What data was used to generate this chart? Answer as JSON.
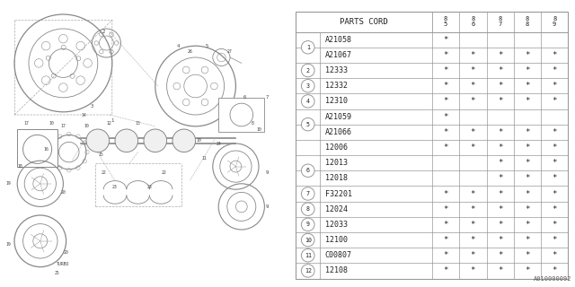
{
  "diagram_id": "A010000092",
  "bg_color": "#ffffff",
  "col_header": "PARTS CORD",
  "year_cols": [
    "85",
    "86",
    "87",
    "88",
    "89"
  ],
  "rows": [
    {
      "num": "1",
      "parts": [
        "A21058",
        "A21067"
      ],
      "marks": [
        [
          "*",
          "",
          "",
          "",
          ""
        ],
        [
          "*",
          "*",
          "*",
          "*",
          "*"
        ]
      ]
    },
    {
      "num": "2",
      "parts": [
        "12333"
      ],
      "marks": [
        [
          "*",
          "*",
          "*",
          "*",
          "*"
        ]
      ]
    },
    {
      "num": "3",
      "parts": [
        "12332"
      ],
      "marks": [
        [
          "*",
          "*",
          "*",
          "*",
          "*"
        ]
      ]
    },
    {
      "num": "4",
      "parts": [
        "12310"
      ],
      "marks": [
        [
          "*",
          "*",
          "*",
          "*",
          "*"
        ]
      ]
    },
    {
      "num": "5",
      "parts": [
        "A21059",
        "A21066"
      ],
      "marks": [
        [
          "*",
          "",
          "",
          "",
          ""
        ],
        [
          "*",
          "*",
          "*",
          "*",
          "*"
        ]
      ]
    },
    {
      "num": "",
      "parts": [
        "12006"
      ],
      "marks": [
        [
          "*",
          "*",
          "*",
          "*",
          "*"
        ]
      ]
    },
    {
      "num": "6",
      "parts": [
        "12013",
        "12018"
      ],
      "marks": [
        [
          "",
          "",
          "*",
          "*",
          "*"
        ],
        [
          "",
          "",
          "*",
          "*",
          "*"
        ]
      ]
    },
    {
      "num": "7",
      "parts": [
        "F32201"
      ],
      "marks": [
        [
          "*",
          "*",
          "*",
          "*",
          "*"
        ]
      ]
    },
    {
      "num": "8",
      "parts": [
        "12024"
      ],
      "marks": [
        [
          "*",
          "*",
          "*",
          "*",
          "*"
        ]
      ]
    },
    {
      "num": "9",
      "parts": [
        "12033"
      ],
      "marks": [
        [
          "*",
          "*",
          "*",
          "*",
          "*"
        ]
      ]
    },
    {
      "num": "10",
      "parts": [
        "12100"
      ],
      "marks": [
        [
          "*",
          "*",
          "*",
          "*",
          "*"
        ]
      ]
    },
    {
      "num": "11",
      "parts": [
        "C00807"
      ],
      "marks": [
        [
          "*",
          "*",
          "*",
          "*",
          "*"
        ]
      ]
    },
    {
      "num": "12",
      "parts": [
        "12108"
      ],
      "marks": [
        [
          "*",
          "*",
          "*",
          "*",
          "*"
        ]
      ]
    }
  ],
  "line_color": "#999999",
  "text_color": "#222222",
  "font_size": 6.0,
  "header_font_size": 6.5,
  "star_font_size": 6.5
}
